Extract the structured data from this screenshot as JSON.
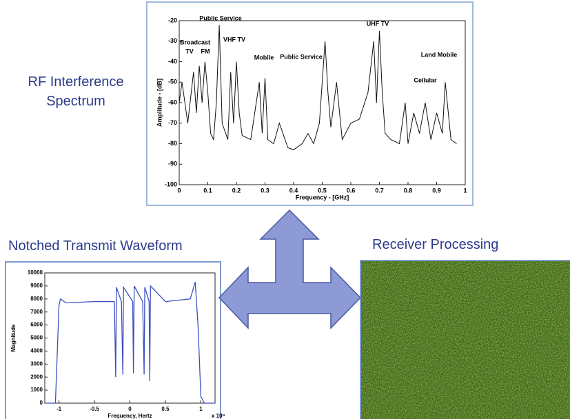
{
  "captions": {
    "spectrum": "RF Interference Spectrum",
    "waveform": "Notched Transmit Waveform",
    "receiver": "Receiver Processing"
  },
  "chart_data": [
    {
      "type": "line",
      "xlabel": "Frequency - [GHz]",
      "ylabel": "Amplitude - [dB]",
      "annotations": [
        "Public Service",
        "Broadcast",
        "TV",
        "FM",
        "VHF TV",
        "Mobile",
        "Public Service",
        "UHF TV",
        "Land Mobile",
        "Cellular"
      ],
      "x": [
        0,
        0.01,
        0.03,
        0.05,
        0.06,
        0.07,
        0.08,
        0.09,
        0.1,
        0.11,
        0.12,
        0.13,
        0.14,
        0.15,
        0.17,
        0.18,
        0.19,
        0.2,
        0.21,
        0.22,
        0.25,
        0.28,
        0.29,
        0.3,
        0.31,
        0.33,
        0.35,
        0.38,
        0.4,
        0.43,
        0.45,
        0.47,
        0.49,
        0.51,
        0.52,
        0.53,
        0.55,
        0.57,
        0.6,
        0.63,
        0.66,
        0.68,
        0.69,
        0.7,
        0.71,
        0.72,
        0.74,
        0.77,
        0.79,
        0.8,
        0.82,
        0.84,
        0.86,
        0.88,
        0.9,
        0.92,
        0.93,
        0.95,
        0.97
      ],
      "values": [
        -60,
        -50,
        -70,
        -45,
        -65,
        -42,
        -60,
        -40,
        -55,
        -75,
        -78,
        -60,
        -22,
        -70,
        -78,
        -45,
        -70,
        -40,
        -65,
        -76,
        -78,
        -50,
        -75,
        -48,
        -78,
        -80,
        -70,
        -82,
        -83,
        -80,
        -75,
        -80,
        -70,
        -30,
        -55,
        -72,
        -50,
        -78,
        -70,
        -68,
        -55,
        -30,
        -60,
        -25,
        -55,
        -75,
        -78,
        -80,
        -60,
        -80,
        -65,
        -75,
        -60,
        -78,
        -65,
        -75,
        -50,
        -78,
        -80
      ],
      "color": "#111111",
      "xlim": [
        0,
        1
      ],
      "xticks": [
        0,
        0.1,
        0.2,
        0.3,
        0.4,
        0.5,
        0.6,
        0.7,
        0.8,
        0.9,
        1
      ],
      "ylim": [
        -100,
        -20
      ],
      "yticks": [
        -100,
        -90,
        -80,
        -70,
        -60,
        -50,
        -40,
        -30,
        -20
      ]
    },
    {
      "type": "line",
      "xlabel": "Frequency, Hertz",
      "ylabel": "Magnitude",
      "x_multiplier": "x 10⁹",
      "x": [
        -1.2,
        -1.05,
        -1.0,
        -0.98,
        -0.9,
        -0.5,
        -0.22,
        -0.2,
        -0.19,
        -0.12,
        -0.1,
        -0.09,
        0.04,
        0.05,
        0.06,
        0.18,
        0.2,
        0.21,
        0.27,
        0.28,
        0.29,
        0.5,
        0.85,
        0.92,
        0.96,
        1.0,
        1.05,
        1.2
      ],
      "values": [
        0,
        0,
        7500,
        8000,
        7700,
        7800,
        7800,
        2000,
        8900,
        7800,
        2200,
        8900,
        7800,
        2300,
        9000,
        7800,
        2200,
        8900,
        7800,
        1700,
        9000,
        7800,
        8000,
        9300,
        6000,
        500,
        0,
        0
      ],
      "color": "#3a4fc0",
      "xlim": [
        -1.2,
        1.2
      ],
      "xticks": [
        -1,
        -0.5,
        0,
        0.5,
        1
      ],
      "ylim": [
        0,
        10000
      ],
      "yticks": [
        0,
        1000,
        2000,
        3000,
        4000,
        5000,
        6000,
        7000,
        8000,
        9000,
        10000
      ]
    }
  ]
}
